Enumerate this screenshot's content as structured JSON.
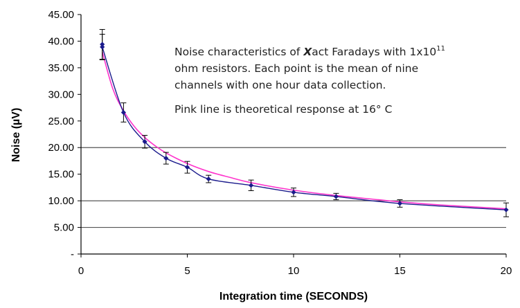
{
  "chart_data": {
    "type": "line",
    "xlabel": "Integration time (SECONDS)",
    "ylabel_parts": [
      "Noise (",
      "µ",
      "V)"
    ],
    "xlim": [
      0,
      20
    ],
    "ylim": [
      0,
      45
    ],
    "x_ticks": [
      0,
      5,
      10,
      15,
      20
    ],
    "y_ticks": [
      {
        "value": 0,
        "label": "-"
      },
      {
        "value": 5,
        "label": "5.00"
      },
      {
        "value": 10,
        "label": "10.00"
      },
      {
        "value": 15,
        "label": "15.00"
      },
      {
        "value": 20,
        "label": "20.00"
      },
      {
        "value": 25,
        "label": "25.00"
      },
      {
        "value": 30,
        "label": "30.00"
      },
      {
        "value": 35,
        "label": "35.00"
      },
      {
        "value": 40,
        "label": "40.00"
      },
      {
        "value": 45,
        "label": "45.00"
      }
    ],
    "gridlines_y": [
      5,
      10,
      20
    ],
    "series": [
      {
        "color": "#1a1a8c",
        "x": [
          1,
          1,
          2,
          3,
          4,
          5,
          6,
          8,
          10,
          12,
          15,
          20
        ],
        "y": [
          39.4,
          38.9,
          26.6,
          21.1,
          18.0,
          16.3,
          14.1,
          12.9,
          11.6,
          10.8,
          9.5,
          8.3
        ],
        "error": [
          2.8,
          2.4,
          1.8,
          1.2,
          1.1,
          1.1,
          0.7,
          1.0,
          0.8,
          0.6,
          0.7,
          1.3
        ]
      },
      {
        "color": "#ff33cc",
        "x": [
          1,
          1.5,
          2,
          2.5,
          3,
          3.5,
          4,
          5,
          6,
          7,
          8,
          10,
          12,
          14,
          15,
          17,
          20
        ],
        "y": [
          38.0,
          31.0,
          26.9,
          24.0,
          21.9,
          20.3,
          19.0,
          17.0,
          15.5,
          14.4,
          13.4,
          12.0,
          11.0,
          10.2,
          9.8,
          9.2,
          8.5
        ]
      }
    ],
    "annotation": {
      "line1_pre": "Noise characteristics of ",
      "line1_bold": "X",
      "line1_mid": "act Faradays with 1x10",
      "line1_sup": "11",
      "line2": "ohm resistors. Each point is the mean of nine",
      "line3": "channels with one hour data collection.",
      "line4": "Pink line is theoretical response at 16° C"
    }
  }
}
